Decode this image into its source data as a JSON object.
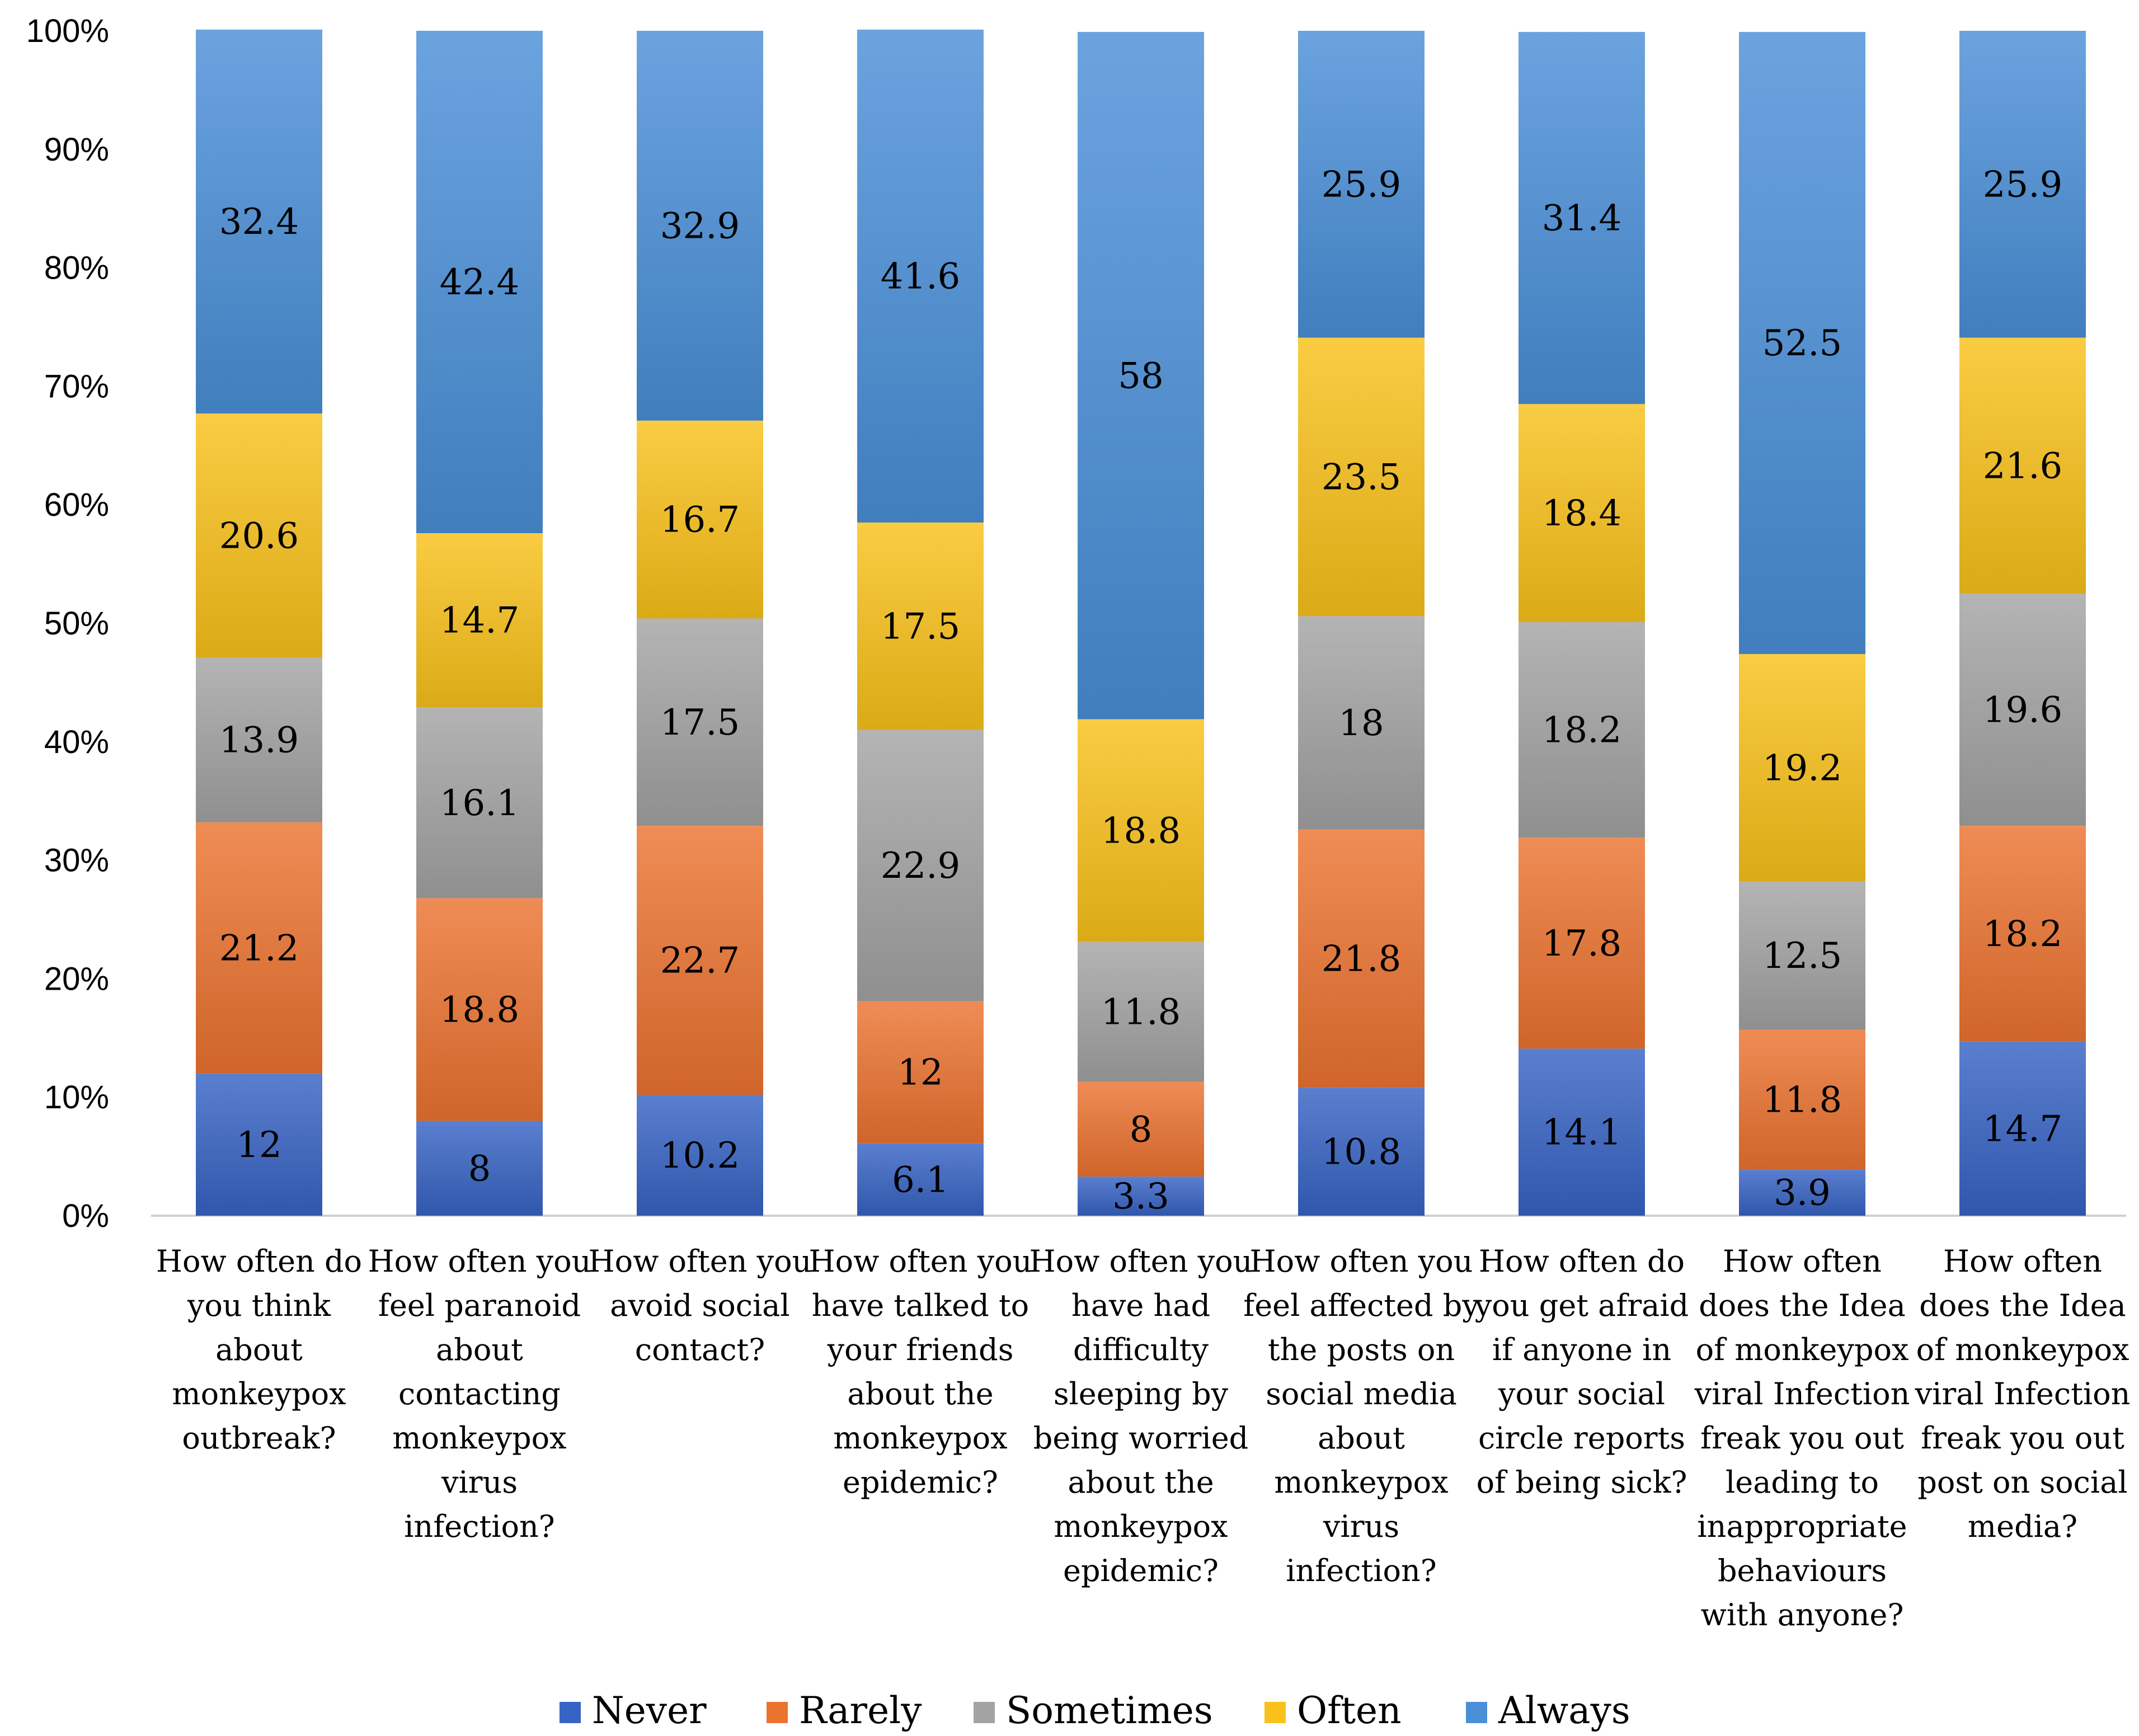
{
  "chart_data": {
    "type": "bar",
    "stacked": true,
    "normalized_percent": true,
    "title": "",
    "xlabel": "",
    "ylabel": "",
    "ylim": [
      0,
      100
    ],
    "yticks": [
      "0%",
      "10%",
      "20%",
      "30%",
      "40%",
      "50%",
      "60%",
      "70%",
      "80%",
      "90%",
      "100%"
    ],
    "legend_position": "bottom",
    "categories": [
      "How often do you think about monkeypox outbreak?",
      "How often you feel paranoid about contacting monkeypox virus infection?",
      "How often you avoid social contact?",
      "How often you have talked to your friends about the monkeypox epidemic?",
      "How often you have had difficulty sleeping by being worried about the monkeypox epidemic?",
      "How often you feel affected by the posts on social media about monkeypox virus infection?",
      "How often do you get afraid if anyone in your social circle reports of being sick?",
      "How often does the Idea of monkeypox viral Infection freak you out leading to inappropriate behaviours with anyone?",
      "How often does the Idea of monkeypox viral Infection freak you out post on social media?"
    ],
    "category_lines": [
      [
        "How often do",
        "you think",
        "about",
        "monkeypox",
        "outbreak?"
      ],
      [
        "How often you",
        "feel paranoid",
        "about",
        "contacting",
        "monkeypox",
        "virus",
        "infection?"
      ],
      [
        "How often you",
        "avoid social",
        "contact?"
      ],
      [
        "How often you",
        "have talked to",
        "your friends",
        "about the",
        "monkeypox",
        "epidemic?"
      ],
      [
        "How often you",
        "have had",
        "difficulty",
        "sleeping by",
        "being worried",
        "about the",
        "monkeypox",
        "epidemic?"
      ],
      [
        "How often you",
        "feel affected by",
        "the posts on",
        "social media",
        "about",
        "monkeypox",
        "virus",
        "infection?"
      ],
      [
        "How often do",
        "you get afraid",
        "if anyone in",
        "your social",
        "circle reports",
        "of being sick?"
      ],
      [
        "How often",
        "does the Idea",
        "of monkeypox",
        "viral Infection",
        "freak you out",
        "leading to",
        "inappropriate",
        "behaviours",
        "with anyone?"
      ],
      [
        "How often",
        "does the Idea",
        "of monkeypox",
        "viral Infection",
        "freak you out",
        "post on social",
        "media?"
      ]
    ],
    "series": [
      {
        "name": "Never",
        "color": "#3763C4",
        "values": [
          12,
          8,
          10.2,
          6.1,
          3.3,
          10.8,
          14.1,
          3.9,
          14.7
        ],
        "labels": [
          "12",
          "8",
          "10.2",
          "6.1",
          "3.3",
          "10.8",
          "14.1",
          "3.9",
          "14.7"
        ]
      },
      {
        "name": "Rarely",
        "color": "#EB7330",
        "values": [
          21.2,
          18.8,
          22.7,
          12,
          8,
          21.8,
          17.8,
          11.8,
          18.2
        ],
        "labels": [
          "21.2",
          "18.8",
          "22.7",
          "12",
          "8",
          "21.8",
          "17.8",
          "11.8",
          "18.2"
        ]
      },
      {
        "name": "Sometimes",
        "color": "#A3A3A3",
        "values": [
          13.9,
          16.1,
          17.5,
          22.9,
          11.8,
          18,
          18.2,
          12.5,
          19.6
        ],
        "labels": [
          "13.9",
          "16.1",
          "17.5",
          "22.9",
          "11.8",
          "18",
          "18.2",
          "12.5",
          "19.6"
        ]
      },
      {
        "name": "Often",
        "color": "#F9C11A",
        "values": [
          20.6,
          14.7,
          16.7,
          17.5,
          18.8,
          23.5,
          18.4,
          19.2,
          21.6
        ],
        "labels": [
          "20.6",
          "14.7",
          "16.7",
          "17.5",
          "18.8",
          "23.5",
          "18.4",
          "19.2",
          "21.6"
        ]
      },
      {
        "name": "Always",
        "color": "#4A8FD8",
        "values": [
          32.4,
          42.4,
          32.9,
          41.6,
          58,
          25.9,
          31.4,
          52.5,
          25.9
        ],
        "labels": [
          "32.4",
          "42.4",
          "32.9",
          "41.6",
          "58",
          "25.9",
          "31.4",
          "52.5",
          "25.9"
        ]
      }
    ]
  }
}
